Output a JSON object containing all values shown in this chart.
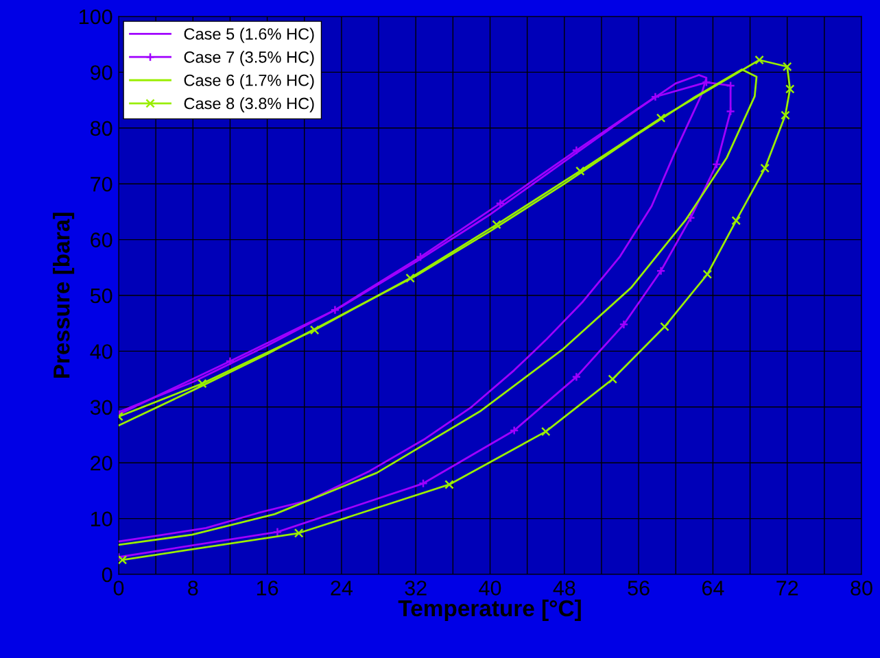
{
  "chart_data": {
    "type": "line",
    "xlabel": "Temperature [°C]",
    "ylabel": "Pressure [bara]",
    "xlim": [
      0,
      80
    ],
    "ylim": [
      0,
      100
    ],
    "xticks": [
      0,
      {
        "value": 4,
        "label": null
      },
      8,
      {
        "value": 12,
        "label": null
      },
      16,
      {
        "value": 20,
        "label": null
      },
      24,
      {
        "value": 28,
        "label": null
      },
      32,
      {
        "value": 36,
        "label": null
      },
      40,
      {
        "value": 44,
        "label": null
      },
      48,
      {
        "value": 52,
        "label": null
      },
      56,
      {
        "value": 60,
        "label": null
      },
      64,
      {
        "value": 68,
        "label": null
      },
      72,
      {
        "value": 76,
        "label": null
      },
      80
    ],
    "yticks": [
      0,
      10,
      20,
      30,
      40,
      50,
      60,
      70,
      80,
      90,
      100
    ],
    "grid": true,
    "legend": "top left",
    "series": [
      {
        "name": "Case 5 (1.6% HC)",
        "color": "#a000ff",
        "marker": "none",
        "x": [
          0,
          8,
          16,
          24,
          32,
          40,
          48,
          56,
          60,
          62.5,
          63.3,
          62.7,
          60,
          57.4,
          54,
          50,
          46,
          42.6,
          38,
          33,
          27,
          20.5,
          15,
          9.4,
          4,
          0
        ],
        "values": [
          29.1,
          34.5,
          41,
          48,
          56,
          64.5,
          74,
          83.5,
          88,
          89.5,
          89,
          85.7,
          76,
          66,
          57,
          48.9,
          42,
          36.6,
          30,
          24.3,
          18.5,
          13.3,
          11,
          8.3,
          6.9,
          5.9
        ]
      },
      {
        "name": "Case 7 (3.5% HC)",
        "color": "#a000ff",
        "marker": "plus",
        "x": [
          0,
          12,
          23.3,
          32.5,
          41.1,
          49.3,
          57.8,
          63.3,
          65.9,
          65.9,
          64.4,
          61.6,
          58.4,
          54.4,
          49.3,
          42.6,
          32.8,
          17.1,
          0
        ],
        "values": [
          28.7,
          38.2,
          47.4,
          56.9,
          66.5,
          76,
          85.6,
          88.2,
          87.6,
          83,
          73.5,
          63.9,
          54.4,
          44.8,
          35.4,
          25.8,
          16.3,
          7.6,
          3.1
        ]
      },
      {
        "name": "Case 6 (1.7% HC)",
        "color": "#99ee00",
        "marker": "none",
        "x": [
          0,
          8,
          16,
          24,
          32,
          40,
          48,
          56,
          62,
          67.1,
          68.7,
          68.5,
          65.5,
          61.1,
          55.2,
          47.8,
          38.9,
          27.8,
          16.8,
          7.9,
          0
        ],
        "values": [
          26.7,
          33,
          39.5,
          46.5,
          53.5,
          61.5,
          70,
          79,
          85.5,
          90.5,
          89.2,
          85.7,
          74.7,
          63.6,
          51.4,
          40.3,
          29.2,
          18.2,
          10.8,
          7.1,
          5.3
        ]
      },
      {
        "name": "Case 8 (3.8% HC)",
        "color": "#99ee00",
        "marker": "cross",
        "x": [
          0,
          9,
          21.1,
          31.4,
          40.7,
          49.7,
          58.4,
          69,
          72,
          72.3,
          71.8,
          69.6,
          66.5,
          63.4,
          58.8,
          53.2,
          46,
          35.6,
          19.4,
          0.4
        ],
        "values": [
          28.3,
          34.2,
          43.8,
          53.1,
          62.7,
          72.3,
          81.8,
          92.2,
          91,
          87,
          82.3,
          72.8,
          63.4,
          53.8,
          44.4,
          35,
          25.6,
          16.1,
          7.4,
          2.6
        ]
      }
    ]
  }
}
